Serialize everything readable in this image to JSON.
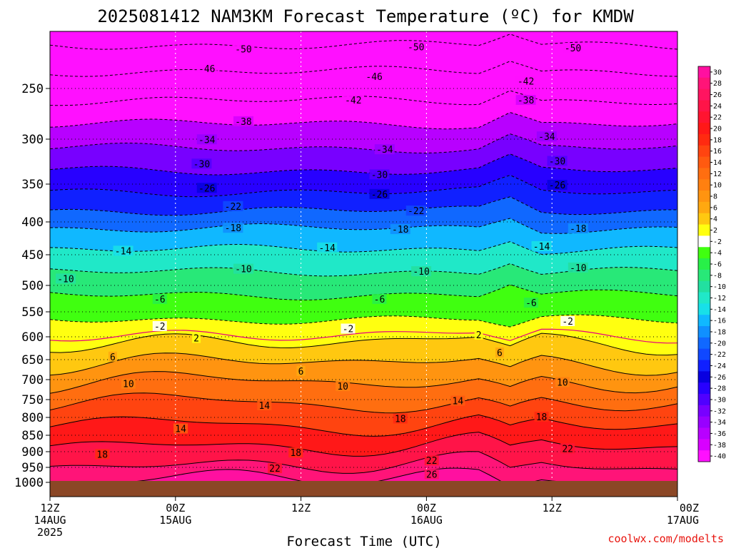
{
  "title": "2025081412 NAM3KM Forecast Temperature (ºC) for KMDW",
  "xlabel": "Forecast Time (UTC)",
  "credit": "coolwx.com/modelts",
  "colors": {
    "ground": "#8b4726",
    "freezing_line": "#e6007e",
    "credit": "#e8140e"
  },
  "chart_data": {
    "type": "contour",
    "title": "2025081412 NAM3KM Forecast Temperature (ºC) for KMDW",
    "xlabel": "Forecast Time (UTC)",
    "ylabel": "",
    "x_range_hours": [
      0,
      60
    ],
    "y_axis": {
      "ticks": [
        250,
        300,
        350,
        400,
        450,
        500,
        550,
        600,
        650,
        700,
        750,
        800,
        850,
        900,
        950,
        1000
      ]
    },
    "x_ticks": [
      {
        "hour": 0,
        "lines": [
          "12Z",
          "14AUG",
          "2025"
        ]
      },
      {
        "hour": 12,
        "lines": [
          "00Z",
          "15AUG"
        ]
      },
      {
        "hour": 24,
        "lines": [
          "12Z"
        ]
      },
      {
        "hour": 36,
        "lines": [
          "00Z",
          "16AUG"
        ]
      },
      {
        "hour": 48,
        "lines": [
          "12Z"
        ]
      },
      {
        "hour": 60,
        "lines": [
          "00Z",
          "17AUG"
        ]
      }
    ],
    "colorbar_ticks": [
      "30",
      "28",
      "26",
      "24",
      "22",
      "20",
      "18",
      "16",
      "14",
      "12",
      "10",
      "8",
      "6",
      "4",
      "2",
      "-2",
      "-4",
      "-6",
      "-8",
      "-10",
      "-12",
      "-14",
      "-16",
      "-18",
      "-20",
      "-22",
      "-24",
      "-26",
      "-28",
      "-30",
      "-32",
      "-34",
      "-36",
      "-38",
      "-40"
    ],
    "colorbar_colors": [
      "#ff10a0",
      "#ff1478",
      "#ff1460",
      "#ff1448",
      "#ff1430",
      "#ff1818",
      "#ff2a10",
      "#ff4410",
      "#ff5a10",
      "#ff6e10",
      "#ff8010",
      "#ff9410",
      "#ffa810",
      "#ffc810",
      "#ffff10",
      "#ffffff",
      "#40ff10",
      "#28f048",
      "#28e878",
      "#22e0a0",
      "#20e8c8",
      "#18e0e8",
      "#10b8ff",
      "#1090ff",
      "#1068ff",
      "#1048ff",
      "#1020ff",
      "#0800e0",
      "#2800ff",
      "#5000ff",
      "#7800ff",
      "#9800ff",
      "#b800ff",
      "#d800ff",
      "#ff10ff"
    ],
    "isotherm_profile": [
      {
        "t": -50,
        "p": 212
      },
      {
        "t": -46,
        "p": 235
      },
      {
        "t": -42,
        "p": 262
      },
      {
        "t": -38,
        "p": 285
      },
      {
        "t": -34,
        "p": 310
      },
      {
        "t": -30,
        "p": 335
      },
      {
        "t": -26,
        "p": 360
      },
      {
        "t": -22,
        "p": 385
      },
      {
        "t": -18,
        "p": 410
      },
      {
        "t": -14,
        "p": 442
      },
      {
        "t": -10,
        "p": 478
      },
      {
        "t": -6,
        "p": 518
      },
      {
        "t": -2,
        "p": 565
      },
      {
        "t": 2,
        "p": 610
      },
      {
        "t": 6,
        "p": 655
      },
      {
        "t": 10,
        "p": 705
      },
      {
        "t": 14,
        "p": 760
      },
      {
        "t": 18,
        "p": 820
      },
      {
        "t": 22,
        "p": 880
      },
      {
        "t": 26,
        "p": 940
      },
      {
        "t": 30,
        "p": 985
      }
    ],
    "contour_labels": [
      {
        "text": "-50",
        "hour": 18.5,
        "p": 216
      },
      {
        "text": "-50",
        "hour": 35.0,
        "p": 214
      },
      {
        "text": "-50",
        "hour": 50.0,
        "p": 215
      },
      {
        "text": "-46",
        "hour": 15.0,
        "p": 233
      },
      {
        "text": "-46",
        "hour": 31.0,
        "p": 240
      },
      {
        "text": "-42",
        "hour": 29.0,
        "p": 262
      },
      {
        "text": "-42",
        "hour": 45.5,
        "p": 244
      },
      {
        "text": "-38",
        "hour": 18.5,
        "p": 283
      },
      {
        "text": "-38",
        "hour": 45.5,
        "p": 262
      },
      {
        "text": "-34",
        "hour": 15.0,
        "p": 301
      },
      {
        "text": "-34",
        "hour": 32.0,
        "p": 312
      },
      {
        "text": "-34",
        "hour": 47.5,
        "p": 298
      },
      {
        "text": "-30",
        "hour": 14.5,
        "p": 328
      },
      {
        "text": "-30",
        "hour": 31.5,
        "p": 340
      },
      {
        "text": "-30",
        "hour": 48.5,
        "p": 325
      },
      {
        "text": "-26",
        "hour": 15.0,
        "p": 356
      },
      {
        "text": "-26",
        "hour": 31.5,
        "p": 364
      },
      {
        "text": "-26",
        "hour": 48.5,
        "p": 352
      },
      {
        "text": "-22",
        "hour": 17.5,
        "p": 380
      },
      {
        "text": "-22",
        "hour": 35.0,
        "p": 386
      },
      {
        "text": "-18",
        "hour": 17.5,
        "p": 410
      },
      {
        "text": "-18",
        "hour": 33.5,
        "p": 412
      },
      {
        "text": "-18",
        "hour": 50.5,
        "p": 411
      },
      {
        "text": "-14",
        "hour": 7.0,
        "p": 445
      },
      {
        "text": "-14",
        "hour": 26.5,
        "p": 440
      },
      {
        "text": "-14",
        "hour": 47.0,
        "p": 438
      },
      {
        "text": "-10",
        "hour": 1.5,
        "p": 490
      },
      {
        "text": "-10",
        "hour": 18.5,
        "p": 474
      },
      {
        "text": "-10",
        "hour": 35.5,
        "p": 478
      },
      {
        "text": "-10",
        "hour": 50.5,
        "p": 472
      },
      {
        "text": "-6",
        "hour": 10.5,
        "p": 527
      },
      {
        "text": "-6",
        "hour": 31.5,
        "p": 527
      },
      {
        "text": "-6",
        "hour": 46.0,
        "p": 534
      },
      {
        "text": "-2",
        "hour": 10.5,
        "p": 580
      },
      {
        "text": "-2",
        "hour": 28.5,
        "p": 585
      },
      {
        "text": "-2",
        "hour": 49.5,
        "p": 570
      },
      {
        "text": "2",
        "hour": 14.0,
        "p": 604
      },
      {
        "text": "2",
        "hour": 41.0,
        "p": 597
      },
      {
        "text": "6",
        "hour": 6.0,
        "p": 645
      },
      {
        "text": "6",
        "hour": 24.0,
        "p": 680
      },
      {
        "text": "6",
        "hour": 43.0,
        "p": 636
      },
      {
        "text": "10",
        "hour": 7.5,
        "p": 712
      },
      {
        "text": "10",
        "hour": 28.0,
        "p": 718
      },
      {
        "text": "10",
        "hour": 49.0,
        "p": 708
      },
      {
        "text": "14",
        "hour": 20.5,
        "p": 768
      },
      {
        "text": "14",
        "hour": 39.0,
        "p": 755
      },
      {
        "text": "14",
        "hour": 12.5,
        "p": 833
      },
      {
        "text": "18",
        "hour": 33.5,
        "p": 805
      },
      {
        "text": "18",
        "hour": 47.0,
        "p": 800
      },
      {
        "text": "18",
        "hour": 5.0,
        "p": 910
      },
      {
        "text": "18",
        "hour": 23.5,
        "p": 905
      },
      {
        "text": "22",
        "hour": 21.5,
        "p": 955
      },
      {
        "text": "22",
        "hour": 36.5,
        "p": 930
      },
      {
        "text": "22",
        "hour": 49.5,
        "p": 892
      },
      {
        "text": "26",
        "hour": 36.5,
        "p": 975
      }
    ]
  }
}
